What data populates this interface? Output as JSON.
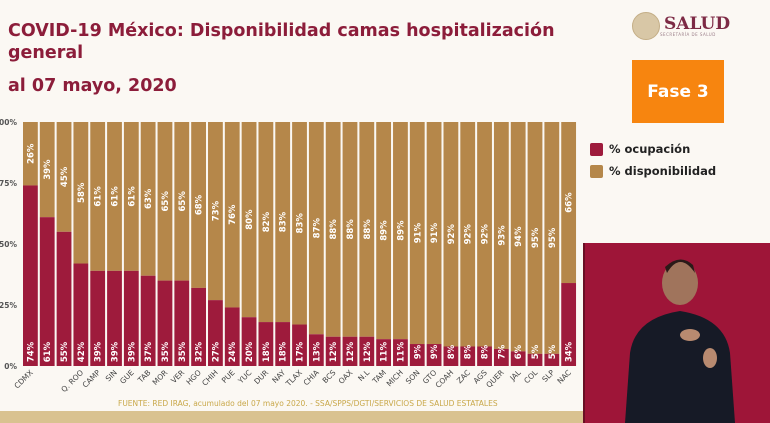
{
  "header": {
    "title": "COVID-19 México: Disponibilidad camas hospitalización general",
    "subtitle": "al 07 mayo, 2020"
  },
  "logo": {
    "text": "SALUD",
    "subtext": "SECRETARÍA DE SALUD"
  },
  "phase_badge": {
    "label": "Fase 3",
    "color": "#f7850f"
  },
  "footer": {
    "source": "FUENTE: RED IRAG, acumulado del 07 mayo 2020.  -  SSA/SPPS/DGTI/SERVICIOS DE SALUD ESTATALES"
  },
  "chart_data": {
    "type": "bar",
    "stacked": true,
    "percent": true,
    "categories": [
      "CDMX",
      "",
      "",
      "Q. ROO",
      "CAMP",
      "SIN",
      "GUE",
      "TAB",
      "MOR",
      "VER",
      "HGO",
      "CHIH",
      "PUE",
      "YUC",
      "DUR",
      "NAY",
      "TLAX",
      "CHIA",
      "BCS",
      "OAX",
      "N.L",
      "TAM",
      "MICH",
      "SON",
      "GTO",
      "COAH",
      "ZAC",
      "AGS",
      "QUER",
      "JAL",
      "COL",
      "SLP",
      "NAC"
    ],
    "series": [
      {
        "name": "% ocupación",
        "color": "#9e1b3c",
        "values": [
          74,
          61,
          55,
          42,
          39,
          39,
          39,
          37,
          35,
          35,
          32,
          27,
          24,
          20,
          18,
          18,
          17,
          13,
          12,
          12,
          12,
          11,
          11,
          9,
          9,
          8,
          8,
          8,
          7,
          6,
          5,
          5,
          34
        ]
      },
      {
        "name": "% disponibilidad",
        "color": "#b5874a",
        "values": [
          26,
          39,
          45,
          58,
          61,
          61,
          61,
          63,
          65,
          65,
          68,
          73,
          76,
          80,
          82,
          83,
          83,
          87,
          88,
          88,
          88,
          89,
          89,
          91,
          91,
          92,
          92,
          92,
          93,
          94,
          95,
          95,
          66
        ]
      }
    ],
    "yticks": [
      "0%",
      "25%",
      "50%",
      "75%",
      "100%"
    ],
    "ylim": [
      0,
      100
    ],
    "legend": "right"
  }
}
